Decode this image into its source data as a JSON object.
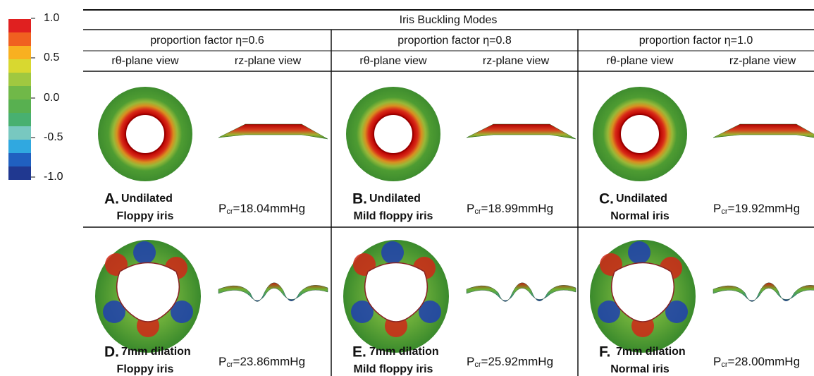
{
  "colorbar": {
    "labels": [
      "1.0",
      "0.5",
      "0.0",
      "-0.5",
      "-1.0"
    ]
  },
  "table": {
    "title": "Iris Buckling Modes",
    "groups": [
      {
        "header": "proportion factor η=0.6",
        "views": [
          "rθ-plane view",
          "rz-plane view"
        ]
      },
      {
        "header": "proportion factor η=0.8",
        "views": [
          "rθ-plane view",
          "rz-plane view"
        ]
      },
      {
        "header": "proportion factor η=1.0",
        "views": [
          "rθ-plane view",
          "rz-plane view"
        ]
      }
    ],
    "rows": [
      [
        {
          "letter": "A.",
          "line1": "Undilated",
          "line2": "Floppy iris",
          "pressure": {
            "symbol": "P",
            "sub": "cr",
            "value": "=18.04mmHg"
          }
        },
        {
          "letter": "B.",
          "line1": "Undilated",
          "line2": "Mild floppy iris",
          "pressure": {
            "symbol": "P",
            "sub": "cr",
            "value": "=18.99mmHg"
          }
        },
        {
          "letter": "C.",
          "line1": "Undilated",
          "line2": "Normal iris",
          "pressure": {
            "symbol": "P",
            "sub": "cr",
            "value": "=19.92mmHg"
          }
        }
      ],
      [
        {
          "letter": "D.",
          "line1": "7mm dilation",
          "line2": "Floppy iris",
          "pressure": {
            "symbol": "P",
            "sub": "cr",
            "value": "=23.86mmHg"
          }
        },
        {
          "letter": "E.",
          "line1": "7mm dilation",
          "line2": "Mild floppy iris",
          "pressure": {
            "symbol": "P",
            "sub": "cr",
            "value": "=25.92mmHg"
          }
        },
        {
          "letter": "F.",
          "line1": "7mm dilation",
          "line2": "Normal iris",
          "pressure": {
            "symbol": "P",
            "sub": "cr",
            "value": "=28.00mmHg"
          }
        }
      ]
    ]
  }
}
